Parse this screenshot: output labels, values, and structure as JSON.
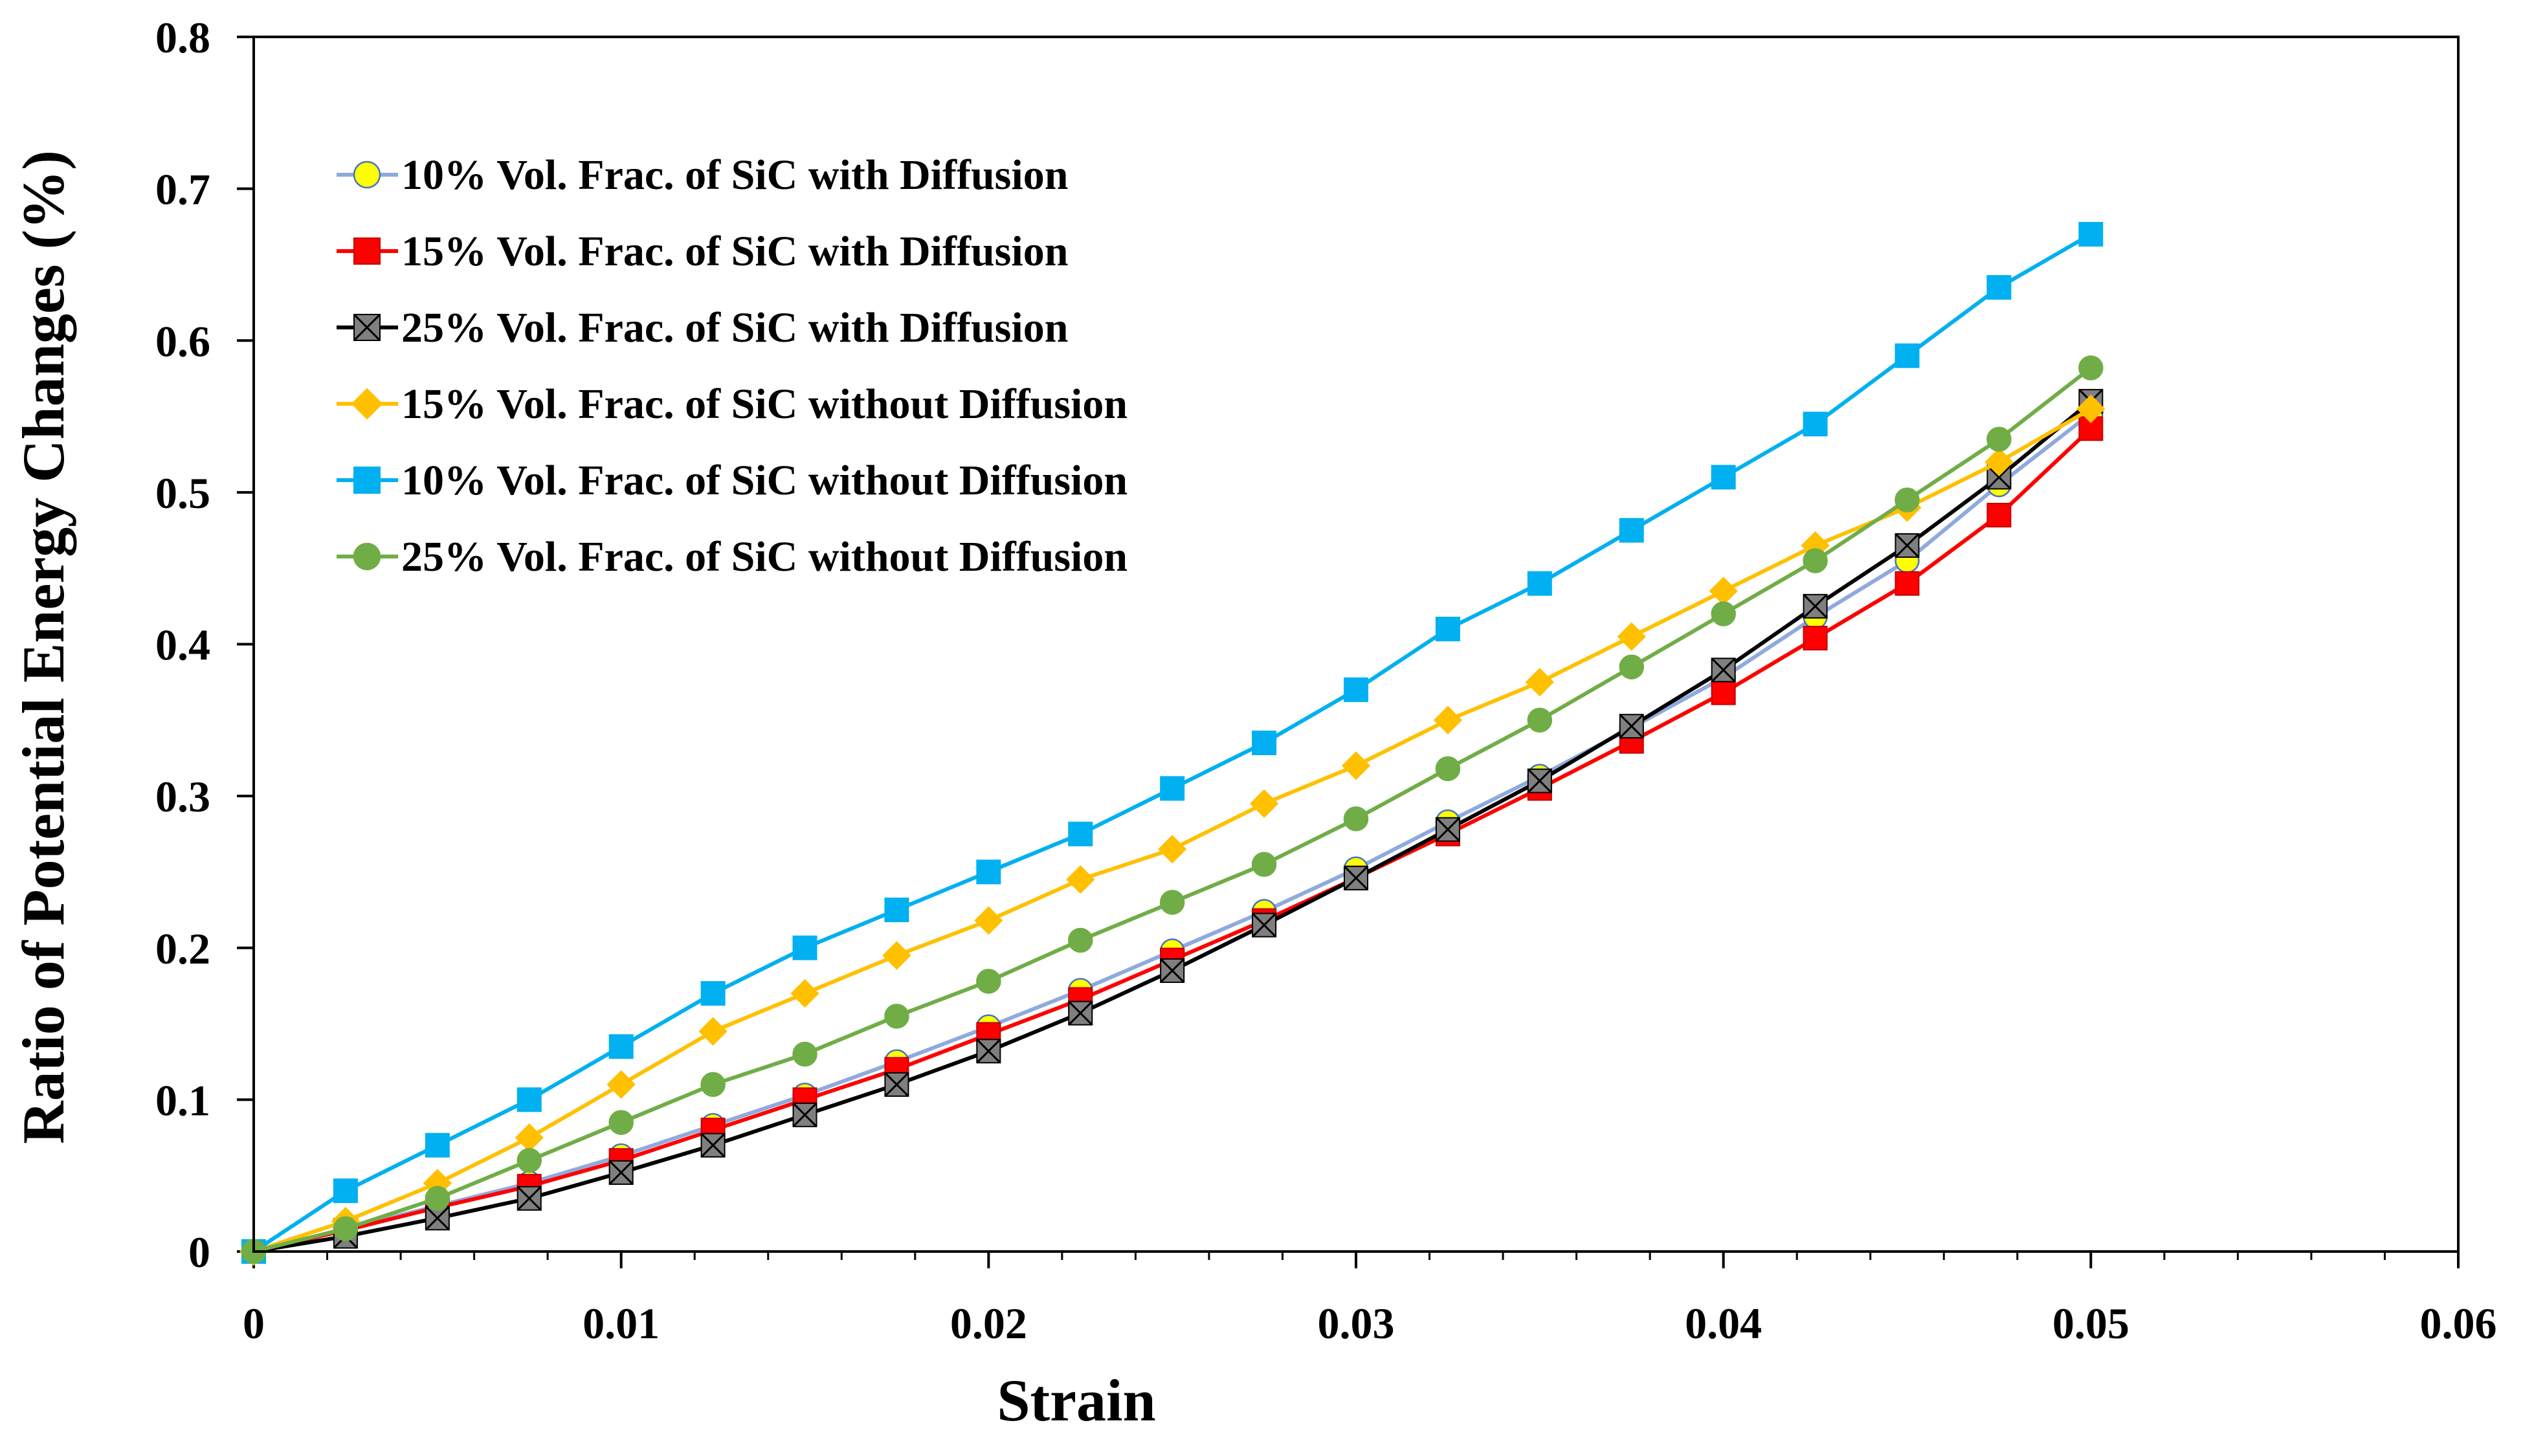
{
  "chart_data": {
    "type": "line",
    "title": "",
    "xlabel": "Strain",
    "ylabel": "Ratio of Potential Energy Changes (%)",
    "xlim": [
      0,
      0.06
    ],
    "ylim": [
      0,
      0.8
    ],
    "xticks": [
      0,
      0.01,
      0.02,
      0.03,
      0.04,
      0.05,
      0.06
    ],
    "xtick_labels": [
      "0",
      "0.01",
      "0.02",
      "0.03",
      "0.04",
      "0.05",
      "0.06"
    ],
    "yticks": [
      0,
      0.1,
      0.2,
      0.3,
      0.4,
      0.5,
      0.6,
      0.7,
      0.8
    ],
    "ytick_labels": [
      "0",
      "0.1",
      "0.2",
      "0.3",
      "0.4",
      "0.5",
      "0.6",
      "0.7",
      "0.8"
    ],
    "grid": false,
    "legend_position": "top-left",
    "x": [
      0,
      0.0025,
      0.005,
      0.0075,
      0.01,
      0.0125,
      0.015,
      0.0175,
      0.02,
      0.0225,
      0.025,
      0.0275,
      0.03,
      0.0325,
      0.035,
      0.0375,
      0.04,
      0.0425,
      0.045,
      0.0475,
      0.05
    ],
    "series": [
      {
        "name": "10% Vol. Frac. of SiC with Diffusion",
        "marker": "circle",
        "line_color": "#8faadc",
        "fill_color": "#ffff00",
        "stroke_color": "#4472c4",
        "values": [
          0,
          0.015,
          0.03,
          0.045,
          0.063,
          0.083,
          0.103,
          0.125,
          0.148,
          0.172,
          0.198,
          0.224,
          0.252,
          0.283,
          0.313,
          0.345,
          0.378,
          0.418,
          0.455,
          0.505,
          0.552
        ]
      },
      {
        "name": "15% Vol. Frac. of SiC with Diffusion",
        "marker": "square",
        "line_color": "#ff0000",
        "fill_color": "#ff0000",
        "stroke_color": "#c00000",
        "values": [
          0,
          0.014,
          0.029,
          0.043,
          0.06,
          0.08,
          0.1,
          0.12,
          0.143,
          0.166,
          0.192,
          0.218,
          0.246,
          0.275,
          0.305,
          0.336,
          0.368,
          0.404,
          0.44,
          0.485,
          0.542
        ]
      },
      {
        "name": "25% Vol. Frac. of SiC with Diffusion",
        "marker": "x-square",
        "line_color": "#000000",
        "fill_color": "#7f7f7f",
        "stroke_color": "#000000",
        "values": [
          0,
          0.01,
          0.022,
          0.035,
          0.052,
          0.07,
          0.09,
          0.11,
          0.132,
          0.157,
          0.185,
          0.215,
          0.246,
          0.278,
          0.31,
          0.346,
          0.383,
          0.425,
          0.465,
          0.51,
          0.56
        ]
      },
      {
        "name": "15% Vol. Frac. of SiC without Diffusion",
        "marker": "diamond",
        "line_color": "#ffc000",
        "fill_color": "#ffc000",
        "stroke_color": "#ffc000",
        "values": [
          0,
          0.02,
          0.045,
          0.075,
          0.11,
          0.145,
          0.17,
          0.195,
          0.218,
          0.245,
          0.265,
          0.295,
          0.32,
          0.35,
          0.375,
          0.405,
          0.435,
          0.465,
          0.49,
          0.52,
          0.555
        ]
      },
      {
        "name": "10% Vol. Frac. of SiC without Diffusion",
        "marker": "square",
        "line_color": "#00b0f0",
        "fill_color": "#00b0f0",
        "stroke_color": "#00b0f0",
        "values": [
          0,
          0.04,
          0.07,
          0.1,
          0.135,
          0.17,
          0.2,
          0.225,
          0.25,
          0.275,
          0.305,
          0.335,
          0.37,
          0.41,
          0.44,
          0.475,
          0.51,
          0.545,
          0.59,
          0.635,
          0.67
        ]
      },
      {
        "name": "25% Vol. Frac. of SiC without Diffusion",
        "marker": "circle",
        "line_color": "#70ad47",
        "fill_color": "#70ad47",
        "stroke_color": "#70ad47",
        "values": [
          0,
          0.015,
          0.035,
          0.06,
          0.085,
          0.11,
          0.13,
          0.155,
          0.178,
          0.205,
          0.23,
          0.255,
          0.285,
          0.318,
          0.35,
          0.385,
          0.42,
          0.455,
          0.495,
          0.535,
          0.582
        ]
      }
    ]
  }
}
